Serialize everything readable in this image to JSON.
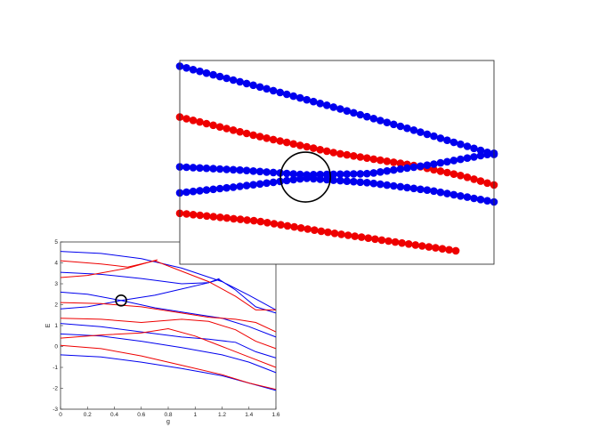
{
  "chart_data": [
    {
      "type": "line",
      "title": "",
      "xlabel": "g",
      "ylabel": "E",
      "xlim": [
        0,
        1.6
      ],
      "ylim": [
        -3,
        5
      ],
      "x_ticks": [
        "0",
        "0.2",
        "0.4",
        "0.6",
        "0.8",
        "1",
        "1.2",
        "1.4",
        "1.6"
      ],
      "y_ticks": [
        "-3",
        "-2",
        "-1",
        "0",
        "1",
        "2",
        "3",
        "4",
        "5"
      ],
      "grid": false,
      "legend": "none",
      "colors": {
        "blue": "#0000ee",
        "red": "#ee0000"
      },
      "series": [
        {
          "color": "blue",
          "points": [
            [
              0,
              4.55
            ],
            [
              0.3,
              4.45
            ],
            [
              0.6,
              4.2
            ],
            [
              0.9,
              3.75
            ],
            [
              1.2,
              3.1
            ],
            [
              1.4,
              2.45
            ],
            [
              1.6,
              1.75
            ]
          ]
        },
        {
          "color": "blue",
          "points": [
            [
              0,
              3.55
            ],
            [
              0.3,
              3.45
            ],
            [
              0.6,
              3.25
            ],
            [
              0.9,
              3.0
            ],
            [
              1.1,
              3.05
            ],
            [
              1.18,
              3.2
            ],
            [
              1.3,
              2.7
            ],
            [
              1.45,
              1.9
            ],
            [
              1.6,
              1.6
            ]
          ]
        },
        {
          "color": "blue",
          "points": [
            [
              0,
              2.6
            ],
            [
              0.2,
              2.5
            ],
            [
              0.45,
              2.2
            ],
            [
              0.7,
              1.85
            ],
            [
              1.0,
              1.55
            ],
            [
              1.2,
              1.35
            ],
            [
              1.4,
              0.95
            ],
            [
              1.6,
              0.45
            ]
          ]
        },
        {
          "color": "blue",
          "points": [
            [
              0,
              1.8
            ],
            [
              0.2,
              1.9
            ],
            [
              0.45,
              2.2
            ],
            [
              0.7,
              2.45
            ],
            [
              0.9,
              2.75
            ],
            [
              1.1,
              3.05
            ],
            [
              1.18,
              3.25
            ]
          ]
        },
        {
          "color": "blue",
          "points": [
            [
              0,
              1.1
            ],
            [
              0.3,
              0.95
            ],
            [
              0.6,
              0.7
            ],
            [
              0.9,
              0.45
            ],
            [
              1.1,
              0.35
            ],
            [
              1.3,
              0.2
            ],
            [
              1.45,
              -0.25
            ],
            [
              1.6,
              -0.55
            ]
          ]
        },
        {
          "color": "blue",
          "points": [
            [
              0,
              0.6
            ],
            [
              0.3,
              0.5
            ],
            [
              0.6,
              0.25
            ],
            [
              0.9,
              -0.05
            ],
            [
              1.2,
              -0.4
            ],
            [
              1.4,
              -0.75
            ],
            [
              1.6,
              -1.25
            ]
          ]
        },
        {
          "color": "blue",
          "points": [
            [
              0,
              -0.4
            ],
            [
              0.3,
              -0.5
            ],
            [
              0.6,
              -0.75
            ],
            [
              0.9,
              -1.05
            ],
            [
              1.2,
              -1.4
            ],
            [
              1.4,
              -1.75
            ],
            [
              1.6,
              -2.1
            ]
          ]
        },
        {
          "color": "red",
          "points": [
            [
              0,
              4.1
            ],
            [
              0.3,
              3.95
            ],
            [
              0.5,
              3.8
            ],
            [
              0.7,
              4.1
            ],
            [
              0.9,
              3.6
            ],
            [
              1.1,
              3.1
            ],
            [
              1.3,
              2.4
            ],
            [
              1.45,
              1.75
            ],
            [
              1.6,
              1.75
            ]
          ]
        },
        {
          "color": "red",
          "points": [
            [
              0,
              3.3
            ],
            [
              0.2,
              3.4
            ],
            [
              0.5,
              3.75
            ],
            [
              0.72,
              4.15
            ]
          ]
        },
        {
          "color": "red",
          "points": [
            [
              0,
              2.1
            ],
            [
              0.3,
              2.05
            ],
            [
              0.6,
              1.9
            ],
            [
              0.9,
              1.6
            ],
            [
              1.1,
              1.4
            ],
            [
              1.3,
              1.3
            ],
            [
              1.45,
              1.15
            ],
            [
              1.6,
              0.7
            ]
          ]
        },
        {
          "color": "red",
          "points": [
            [
              0,
              1.35
            ],
            [
              0.3,
              1.3
            ],
            [
              0.6,
              1.15
            ],
            [
              0.9,
              1.3
            ],
            [
              1.1,
              1.2
            ],
            [
              1.3,
              0.8
            ],
            [
              1.45,
              0.25
            ],
            [
              1.6,
              -0.1
            ]
          ]
        },
        {
          "color": "red",
          "points": [
            [
              0,
              0.4
            ],
            [
              0.3,
              0.55
            ],
            [
              0.6,
              0.65
            ],
            [
              0.8,
              0.85
            ],
            [
              1.0,
              0.5
            ],
            [
              1.2,
              0.0
            ],
            [
              1.4,
              -0.5
            ],
            [
              1.6,
              -1.0
            ]
          ]
        },
        {
          "color": "red",
          "points": [
            [
              0,
              0.05
            ],
            [
              0.3,
              -0.1
            ],
            [
              0.6,
              -0.45
            ],
            [
              0.9,
              -0.9
            ],
            [
              1.2,
              -1.35
            ],
            [
              1.4,
              -1.75
            ],
            [
              1.6,
              -2.05
            ]
          ]
        }
      ],
      "annotation": {
        "shape": "circle",
        "x": 0.45,
        "y": 2.2
      }
    },
    {
      "type": "scatter",
      "title": "",
      "note_zoom_of": "circled region of the line chart",
      "series": [
        {
          "color": "blue",
          "points": [
            [
              0.0,
              1.25
            ],
            [
              0.25,
              1.07
            ],
            [
              0.5,
              0.88
            ],
            [
              0.75,
              0.68
            ],
            [
              1.0,
              0.47
            ]
          ]
        },
        {
          "color": "red",
          "points": [
            [
              0.0,
              0.8
            ],
            [
              0.25,
              0.63
            ],
            [
              0.5,
              0.48
            ],
            [
              0.75,
              0.37
            ],
            [
              0.9,
              0.28
            ],
            [
              1.0,
              0.2
            ]
          ]
        },
        {
          "color": "blue",
          "points": [
            [
              0.0,
              0.36
            ],
            [
              0.2,
              0.33
            ],
            [
              0.4,
              0.29
            ],
            [
              0.6,
              0.3
            ],
            [
              0.8,
              0.38
            ],
            [
              1.0,
              0.48
            ]
          ]
        },
        {
          "color": "blue",
          "points": [
            [
              0.0,
              0.13
            ],
            [
              0.2,
              0.19
            ],
            [
              0.4,
              0.26
            ],
            [
              0.6,
              0.22
            ],
            [
              0.8,
              0.15
            ],
            [
              1.0,
              0.05
            ]
          ]
        },
        {
          "color": "red",
          "points": [
            [
              0.0,
              -0.05
            ],
            [
              0.25,
              -0.12
            ],
            [
              0.5,
              -0.23
            ],
            [
              0.75,
              -0.33
            ],
            [
              0.9,
              -0.39
            ]
          ]
        }
      ],
      "annotation": {
        "shape": "circle",
        "x": 0.4,
        "y": 0.27
      }
    }
  ]
}
